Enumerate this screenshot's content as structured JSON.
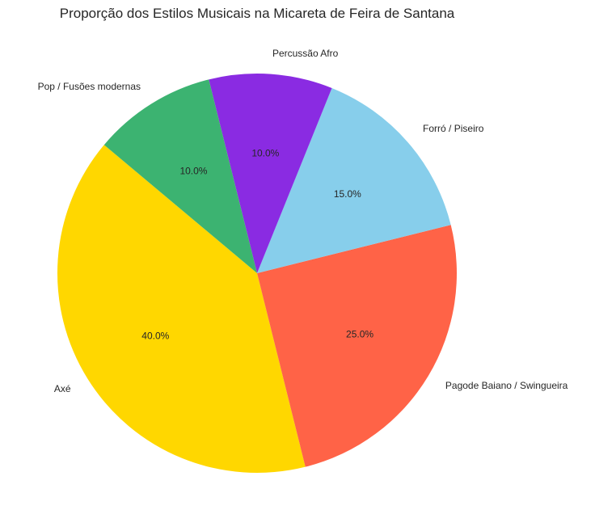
{
  "chart_data": {
    "type": "pie",
    "title": "Proporção dos Estilos Musicais na Micareta de Feira de Santana",
    "categories": [
      "Axé",
      "Pagode Baiano / Swingueira",
      "Forró / Piseiro",
      "Percussão Afro",
      "Pop / Fusões modernas"
    ],
    "values": [
      40,
      25,
      15,
      10,
      10
    ],
    "percent_labels": [
      "40.0%",
      "25.0%",
      "15.0%",
      "10.0%",
      "10.0%"
    ],
    "colors": [
      "#FFD700",
      "#FF6347",
      "#87CEEB",
      "#8A2BE2",
      "#3CB371"
    ],
    "start_angle_deg": 140,
    "direction": "counterclockwise"
  }
}
